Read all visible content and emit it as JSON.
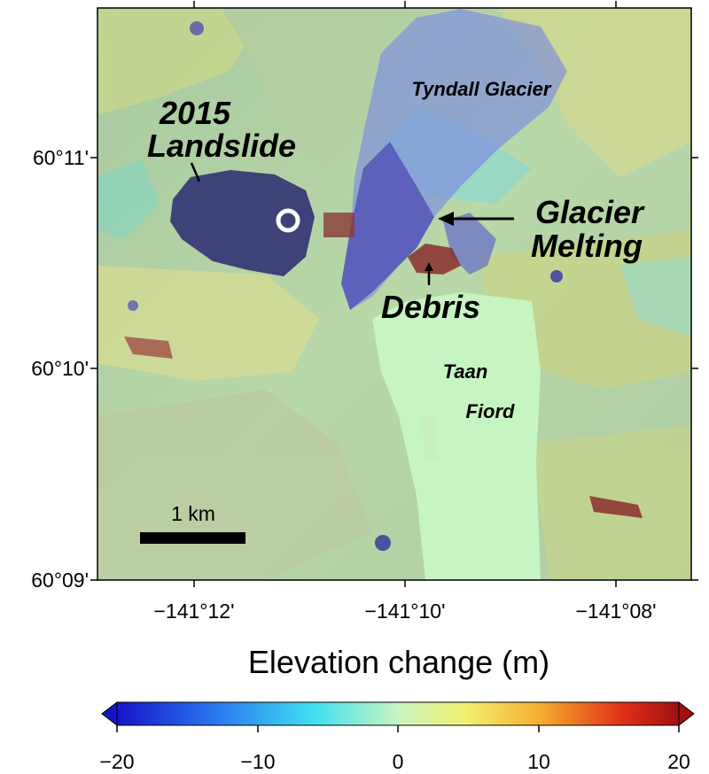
{
  "map": {
    "latitude_ticks": [
      "60°11'",
      "60°10'",
      "60°09'"
    ],
    "longitude_ticks": [
      "−141°12'",
      "−141°10'",
      "−141°08'"
    ],
    "annotations": {
      "tyndall_glacier": "Tyndall Glacier",
      "landslide_line1": "2015",
      "landslide_line2": "Landslide",
      "glacier_line1": "Glacier",
      "glacier_line2": "Melting",
      "debris": "Debris",
      "fiord_line1": "Taan",
      "fiord_line2": "Fiord"
    },
    "scale_bar": {
      "label": "1 km"
    },
    "colorbar": {
      "title": "Elevation change (m)",
      "min": -20,
      "max": 20,
      "ticks": [
        "−20",
        "−10",
        "0",
        "10",
        "20"
      ],
      "colormap": [
        "#1515c8",
        "#2080f0",
        "#38e8f0",
        "#c8f5c0",
        "#f5f560",
        "#f5a020",
        "#e02010",
        "#9a1010"
      ]
    },
    "colors": {
      "landslide_change": "#3a3a7a",
      "glacier_loss": "#6a6acd",
      "debris_gain": "#9a3a3a",
      "fiord_water": "#c7f5c3",
      "terrain_base": "#a5c8a0"
    }
  }
}
